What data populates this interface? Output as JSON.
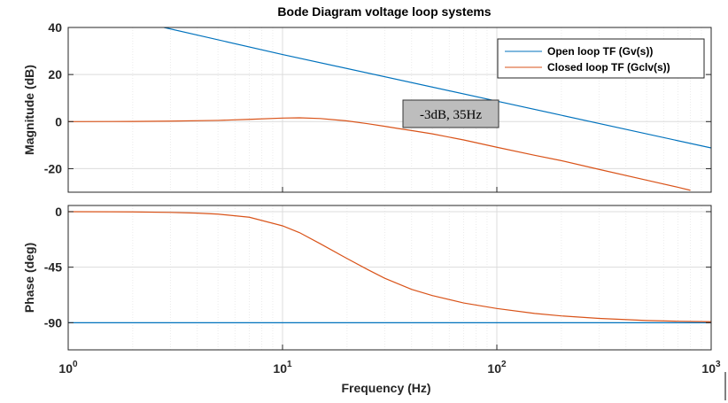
{
  "chart_data": {
    "type": "line",
    "title": "Bode Diagram voltage loop systems",
    "xlabel": "Frequency  (Hz)",
    "x_scale": "log",
    "xlim": [
      1,
      1000
    ],
    "x_ticks": [
      {
        "value": 1,
        "base": "10",
        "exp": "0"
      },
      {
        "value": 10,
        "base": "10",
        "exp": "1"
      },
      {
        "value": 100,
        "base": "10",
        "exp": "2"
      },
      {
        "value": 1000,
        "base": "10",
        "exp": "3"
      }
    ],
    "grid": true,
    "legend": {
      "placement": "top-right"
    },
    "panels": [
      {
        "id": "magnitude",
        "ylabel": "Magnitude (dB)",
        "ylim": [
          -30,
          40
        ],
        "y_ticks": [
          {
            "value": 40,
            "label": "40"
          },
          {
            "value": 20,
            "label": "20"
          },
          {
            "value": 0,
            "label": "0"
          },
          {
            "value": -20,
            "label": "-20"
          }
        ],
        "series": [
          {
            "name": "Open loop TF (Gv(s))",
            "color": "#0072BD",
            "x": [
              2.8,
              10,
              100,
              1000
            ],
            "y": [
              40,
              28.5,
              8.7,
              -11.2
            ]
          },
          {
            "name": "Closed loop TF (Gclv(s))",
            "color": "#D95319",
            "x": [
              1,
              2,
              3,
              5,
              7,
              10,
              12,
              15,
              20,
              25,
              30,
              35,
              40,
              50,
              70,
              100,
              150,
              200,
              300,
              500,
              700,
              800
            ],
            "y": [
              0,
              0.05,
              0.2,
              0.5,
              0.95,
              1.5,
              1.6,
              1.3,
              0.3,
              -0.9,
              -2.0,
              -3.0,
              -3.8,
              -5.2,
              -7.8,
              -10.9,
              -14.3,
              -16.6,
              -20.3,
              -24.9,
              -27.9,
              -29.2
            ]
          }
        ],
        "annotation": {
          "text": "-3dB, 35Hz"
        }
      },
      {
        "id": "phase",
        "ylabel": "Phase (deg)",
        "ylim": [
          -112,
          5
        ],
        "y_ticks": [
          {
            "value": 0,
            "label": "0"
          },
          {
            "value": -45,
            "label": "-45"
          },
          {
            "value": -90,
            "label": "-90"
          }
        ],
        "series": [
          {
            "name": "Open loop TF (Gv(s))",
            "color": "#0072BD",
            "x": [
              1,
              1000
            ],
            "y": [
              -90,
              -90
            ]
          },
          {
            "name": "Closed loop TF (Gclv(s))",
            "color": "#D95319",
            "x": [
              1,
              2,
              3,
              4,
              5,
              7,
              10,
              12,
              15,
              20,
              25,
              30,
              40,
              50,
              70,
              100,
              150,
              200,
              300,
              500,
              700,
              1000
            ],
            "y": [
              0,
              -0.2,
              -0.6,
              -1.2,
              -2.0,
              -4.5,
              -11.5,
              -17,
              -26,
              -38,
              -47,
              -54,
              -63,
              -68,
              -74,
              -78.5,
              -82.5,
              -84.5,
              -86.5,
              -88.2,
              -88.8,
              -89.2
            ]
          }
        ]
      }
    ]
  },
  "colors": {
    "grid": "#e2e2e2",
    "axis": "#262626",
    "annotation_bg": "#bdbdbd"
  }
}
